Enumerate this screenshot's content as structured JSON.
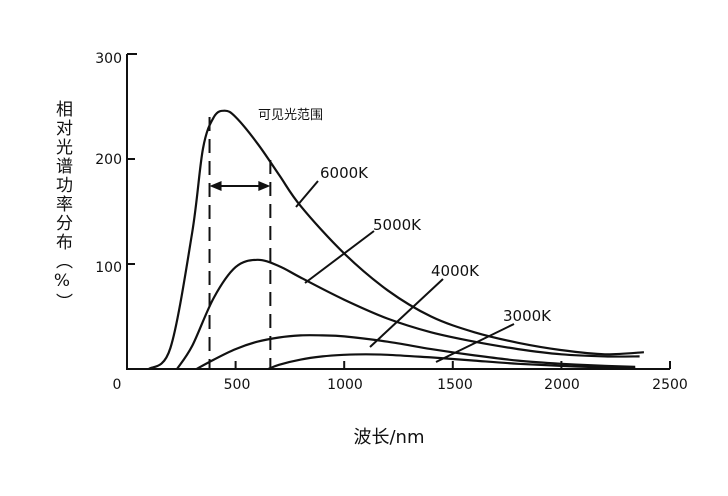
{
  "chart_data": {
    "type": "line",
    "title": "",
    "xlabel": "波长/nm",
    "ylabel": "相对光谱功率分布（%）",
    "xlim": [
      0,
      2500
    ],
    "ylim": [
      0,
      300
    ],
    "x_ticks": [
      "0",
      "500",
      "1000",
      "1500",
      "2000",
      "2500"
    ],
    "y_ticks": [
      "100",
      "200",
      "300"
    ],
    "grid": false,
    "visible_range": {
      "label": "可见光范围",
      "x_start": 380,
      "x_end": 660
    },
    "series": [
      {
        "name": "6000K",
        "x": [
          100,
          200,
          300,
          350,
          400,
          450,
          500,
          600,
          700,
          800,
          1000,
          1200,
          1400,
          1600,
          1800,
          2000,
          2200,
          2380
        ],
        "values": [
          0,
          20,
          130,
          210,
          240,
          246,
          240,
          215,
          185,
          155,
          110,
          75,
          50,
          35,
          25,
          18,
          14,
          16
        ]
      },
      {
        "name": "5000K",
        "x": [
          230,
          300,
          400,
          500,
          600,
          700,
          800,
          1000,
          1200,
          1400,
          1600,
          1800,
          2000,
          2200,
          2360
        ],
        "values": [
          0,
          22,
          68,
          97,
          104,
          98,
          87,
          66,
          48,
          35,
          26,
          19,
          14,
          12,
          12
        ]
      },
      {
        "name": "4000K",
        "x": [
          320,
          400,
          500,
          600,
          700,
          800,
          900,
          1000,
          1200,
          1400,
          1600,
          1800,
          2000,
          2200,
          2340
        ],
        "values": [
          0,
          9,
          19,
          26,
          30,
          32,
          32,
          31,
          26,
          19,
          13,
          8,
          5,
          3,
          2
        ]
      },
      {
        "name": "3000K",
        "x": [
          650,
          700,
          800,
          900,
          1000,
          1100,
          1200,
          1400,
          1600,
          1800,
          2000,
          2200,
          2340
        ],
        "values": [
          0,
          4,
          9,
          12,
          13.5,
          14,
          13.5,
          11,
          8,
          5,
          3,
          1.5,
          1
        ]
      }
    ]
  }
}
